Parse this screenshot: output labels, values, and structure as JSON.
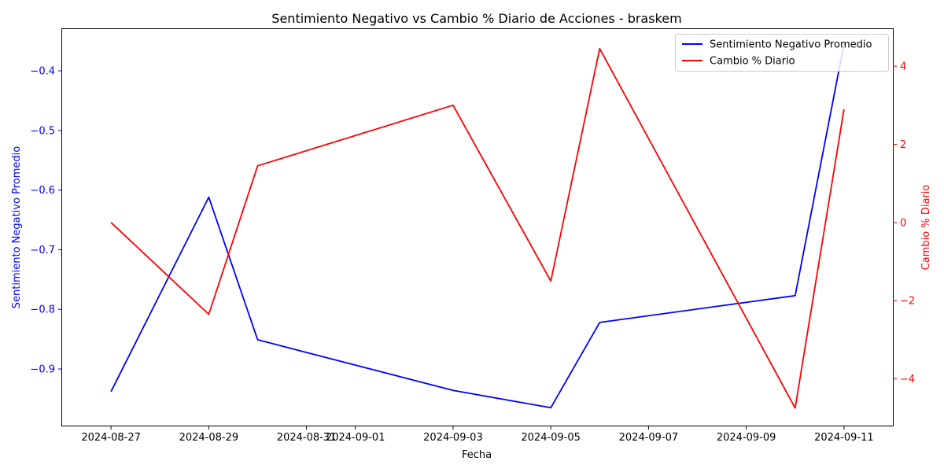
{
  "chart_data": {
    "type": "line",
    "title": "Sentimiento Negativo vs Cambio % Diario de Acciones - braskem",
    "xlabel": "Fecha",
    "x_ticks": [
      "2024-08-27",
      "2024-08-29",
      "2024-08-31",
      "2024-09-01",
      "2024-09-03",
      "2024-09-05",
      "2024-09-07",
      "2024-09-09",
      "2024-09-11"
    ],
    "xlim": [
      "2024-08-26",
      "2024-09-12"
    ],
    "left_axis": {
      "label": "Sentimiento Negativo Promedio",
      "color": "#0000ff",
      "ylim": [
        -0.995,
        -0.33
      ],
      "ticks": [
        -0.9,
        -0.8,
        -0.7,
        -0.6,
        -0.5,
        -0.4
      ],
      "tick_labels": [
        "−0.9",
        "−0.8",
        "−0.7",
        "−0.6",
        "−0.5",
        "−0.4"
      ]
    },
    "right_axis": {
      "label": "Cambio % Diario",
      "color": "#ff0000",
      "ylim": [
        -5.2,
        4.95
      ],
      "ticks": [
        -4,
        -2,
        0,
        2,
        4
      ],
      "tick_labels": [
        "−4",
        "−2",
        "0",
        "2",
        "4"
      ]
    },
    "series": [
      {
        "name": "Sentimiento Negativo Promedio",
        "axis": "left",
        "color": "#0000ff",
        "x": [
          "2024-08-27",
          "2024-08-29",
          "2024-08-30",
          "2024-09-03",
          "2024-09-05",
          "2024-09-06",
          "2024-09-10",
          "2024-09-11"
        ],
        "values": [
          -0.938,
          -0.612,
          -0.851,
          -0.936,
          -0.965,
          -0.822,
          -0.777,
          -0.355
        ]
      },
      {
        "name": "Cambio % Diario",
        "axis": "right",
        "color": "#ff0000",
        "x": [
          "2024-08-27",
          "2024-08-29",
          "2024-08-30",
          "2024-09-03",
          "2024-09-05",
          "2024-09-06",
          "2024-09-10",
          "2024-09-11"
        ],
        "values": [
          0.0,
          -2.35,
          1.45,
          3.0,
          -1.5,
          4.45,
          -4.75,
          2.9
        ]
      }
    ],
    "legend": "top-right",
    "grid": false
  }
}
